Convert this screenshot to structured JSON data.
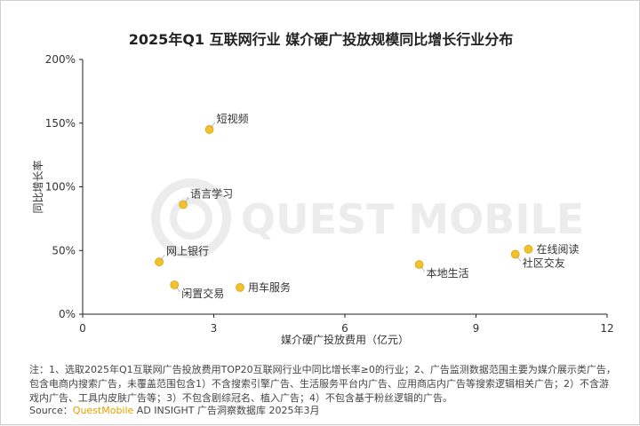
{
  "title": "2025年Q1 互联网行业 媒介硬广投放规模同比增长行业分布",
  "watermark": "QUEST MOBILE",
  "note": "注：1、选取2025年Q1互联网广告投放费用TOP20互联网行业中同比增长率≥0的行业；2、广告监测数据范围主要为媒介展示类广告，包含电商内搜索广告，未覆盖范围包含1）不含搜索引擎广告、生活服务平台内广告、应用商店内广告等搜索逻辑相关广告；2）不含游戏内广告、工具内皮肤广告等；3）不包含剧综冠名、植入广告；4）不包含基于粉丝逻辑的广告。",
  "source": {
    "prefix": "Source：",
    "brand": "QuestMobile",
    "rest": " AD INSIGHT 广告洞察数据库 2025年3月"
  },
  "colors": {
    "point": "#f2c12e",
    "point_edge": "#d9a514",
    "axis": "#222222",
    "text": "#333333"
  },
  "chart_data": {
    "type": "scatter",
    "title": "2025年Q1 互联网行业 媒介硬广投放规模同比增长行业分布",
    "xlabel": "媒介硬广投放费用（亿元）",
    "ylabel": "同比增长率",
    "xlim": [
      0,
      12
    ],
    "ylim": [
      0,
      2
    ],
    "xticks": [
      0,
      3,
      6,
      9,
      12
    ],
    "xtick_labels": [
      "0",
      "3",
      "6",
      "9",
      "12"
    ],
    "yticks": [
      0,
      0.5,
      1,
      1.5,
      2
    ],
    "ytick_labels": [
      "0%",
      "50%",
      "100%",
      "150%",
      "200%"
    ],
    "grid": false,
    "points": [
      {
        "label": "短视频",
        "x": 2.9,
        "y": 1.45,
        "label_pos": "right-up"
      },
      {
        "label": "语言学习",
        "x": 2.3,
        "y": 0.86,
        "label_pos": "right-up"
      },
      {
        "label": "网上银行",
        "x": 1.75,
        "y": 0.41,
        "label_pos": "right-up"
      },
      {
        "label": "闲置交易",
        "x": 2.1,
        "y": 0.23,
        "label_pos": "right-down"
      },
      {
        "label": "用车服务",
        "x": 3.6,
        "y": 0.21,
        "label_pos": "right"
      },
      {
        "label": "本地生活",
        "x": 7.7,
        "y": 0.39,
        "label_pos": "right-down"
      },
      {
        "label": "在线阅读",
        "x": 10.2,
        "y": 0.51,
        "label_pos": "right"
      },
      {
        "label": "社区交友",
        "x": 9.9,
        "y": 0.47,
        "label_pos": "right-down"
      }
    ]
  }
}
